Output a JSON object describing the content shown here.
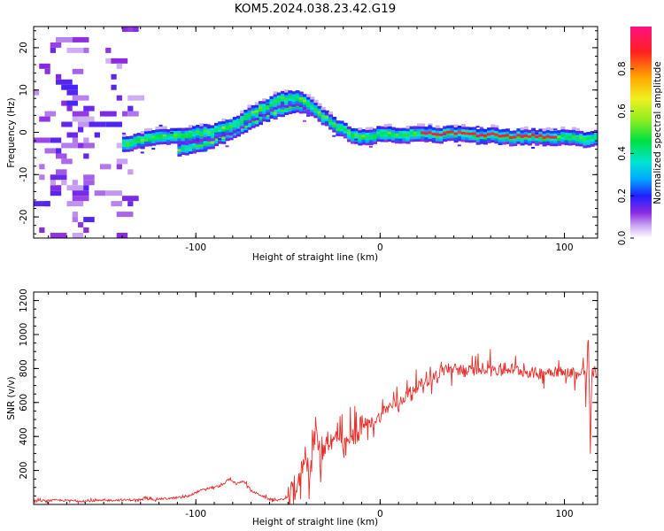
{
  "title": "KOM5.2024.038.23.42.G19",
  "colors": {
    "snr_line": "#e8302c",
    "frame": "#000000",
    "background": "#ffffff"
  },
  "chart_data": [
    {
      "type": "heatmap",
      "xlabel": "Height of straight line (km)",
      "ylabel": "Frequency (Hz)",
      "xlim": [
        -188,
        118
      ],
      "ylim": [
        -25,
        25
      ],
      "xticks": [
        -100,
        0,
        100
      ],
      "yticks": [
        -20,
        -10,
        0,
        10,
        20
      ],
      "grid": false,
      "colorbar": {
        "label": "Normalized spectral amplitude",
        "range": [
          0,
          1
        ],
        "ticks": [
          "0.0",
          "0.2",
          "0.4",
          "0.6",
          "0.8"
        ],
        "colormap": "rainbow"
      },
      "ridge": {
        "x": [
          -140,
          -125,
          -110,
          -100,
          -90,
          -80,
          -72,
          -64,
          -56,
          -48,
          -42,
          -36,
          -30,
          -24,
          -18,
          -12,
          -6,
          0,
          10,
          20,
          30,
          40,
          50,
          60,
          70,
          80,
          90,
          100,
          110,
          118
        ],
        "y": [
          -3,
          -1.5,
          -1,
          -0.5,
          0,
          1.5,
          4,
          5.5,
          7.5,
          8,
          7,
          5,
          3,
          1,
          -0.5,
          -1.5,
          -1.2,
          -0.5,
          -1,
          -0.5,
          -0.8,
          -0.5,
          -1,
          -1,
          -1.5,
          -1.2,
          -1.5,
          -1.5,
          -1.8,
          -1.2
        ]
      },
      "secondary_ridge": {
        "x": [
          -110,
          -95,
          -85,
          -75,
          -65,
          -55,
          -45,
          -38,
          -32
        ],
        "y": [
          -4.5,
          -3,
          -1,
          1,
          3.5,
          5,
          6,
          5,
          3.5
        ]
      }
    },
    {
      "type": "line",
      "xlabel": "Height of straight line (km)",
      "ylabel": "SNR (v/v)",
      "xlim": [
        -188,
        118
      ],
      "ylim": [
        0,
        1250
      ],
      "xticks": [
        -100,
        0,
        100
      ],
      "yticks": [
        200,
        400,
        600,
        800,
        1000,
        1200
      ],
      "grid": false,
      "series": [
        {
          "x": [
            -188,
            -175,
            -160,
            -145,
            -130,
            -115,
            -105,
            -98,
            -92,
            -86,
            -82,
            -78,
            -74,
            -70,
            -66,
            -60,
            -55,
            -50,
            -47,
            -44,
            -41,
            -38,
            -35,
            -32,
            -29,
            -26,
            -23,
            -20,
            -17,
            -14,
            -11,
            -8,
            -5,
            -2,
            0,
            3,
            6,
            9,
            12,
            15,
            18,
            21,
            24,
            27,
            30,
            33,
            36,
            39,
            42,
            45,
            50,
            55,
            60,
            65,
            70,
            75,
            80,
            85,
            90,
            95,
            100,
            104,
            108,
            110,
            112,
            113,
            114,
            115,
            116,
            118
          ],
          "y": [
            20,
            25,
            20,
            25,
            28,
            35,
            45,
            80,
            100,
            110,
            150,
            120,
            140,
            80,
            60,
            30,
            25,
            40,
            80,
            120,
            300,
            200,
            450,
            250,
            400,
            350,
            420,
            300,
            380,
            400,
            450,
            470,
            480,
            500,
            520,
            560,
            580,
            600,
            620,
            650,
            680,
            700,
            720,
            740,
            760,
            780,
            800,
            790,
            800,
            780,
            790,
            800,
            810,
            780,
            800,
            790,
            780,
            770,
            780,
            790,
            770,
            780,
            760,
            780,
            760,
            1000,
            300,
            800,
            780,
            770
          ]
        }
      ]
    }
  ]
}
